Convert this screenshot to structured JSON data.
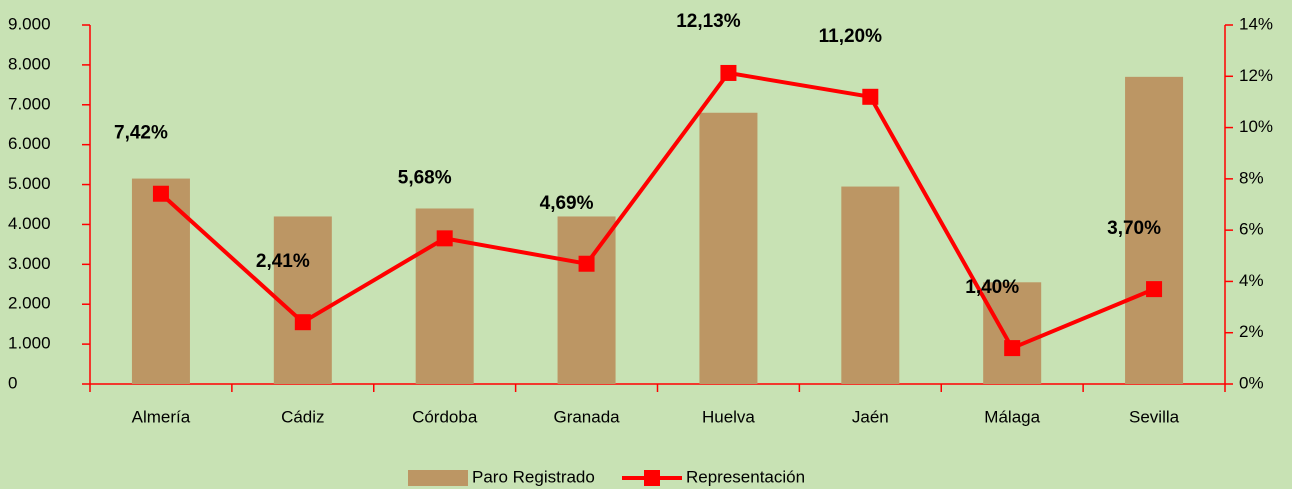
{
  "chart_data": {
    "type": "bar_line",
    "categories": [
      "Almería",
      "Cádiz",
      "Córdoba",
      "Granada",
      "Huelva",
      "Jaén",
      "Málaga",
      "Sevilla"
    ],
    "series": [
      {
        "name": "Paro Registrado",
        "type": "bar",
        "color": "#bc9664",
        "values": [
          5150,
          4200,
          4400,
          4200,
          6800,
          4950,
          2550,
          7700
        ]
      },
      {
        "name": "Representación",
        "type": "line",
        "axis": "y2",
        "color": "#ff0000",
        "values": [
          7.42,
          2.41,
          5.68,
          4.69,
          12.13,
          11.2,
          1.4,
          3.7
        ],
        "value_labels": [
          "7,42%",
          "2,41%",
          "5,68%",
          "4,69%",
          "12,13%",
          "11,20%",
          "1,40%",
          "3,70%"
        ]
      }
    ],
    "ylim": [
      0,
      9000
    ],
    "yticks": [
      0,
      {
        "value": 1000,
        "label": "1.000"
      },
      {
        "value": 2000,
        "label": "2.000"
      },
      {
        "value": 3000,
        "label": "3.000"
      },
      {
        "value": 4000,
        "label": "4.000"
      },
      {
        "value": 5000,
        "label": "5.000"
      },
      {
        "value": 6000,
        "label": "6.000"
      },
      {
        "value": 7000,
        "label": "7.000"
      },
      {
        "value": 8000,
        "label": "8.000"
      },
      {
        "value": 9000,
        "label": "9.000"
      }
    ],
    "y2lim": [
      0,
      14
    ],
    "y2ticks": [
      {
        "value": 0,
        "label": "0%"
      },
      {
        "value": 2,
        "label": "2%"
      },
      {
        "value": 4,
        "label": "4%"
      },
      {
        "value": 6,
        "label": "6%"
      },
      {
        "value": 8,
        "label": "8%"
      },
      {
        "value": 10,
        "label": "10%"
      },
      {
        "value": 12,
        "label": "12%"
      },
      {
        "value": 14,
        "label": "14%"
      }
    ],
    "legend": "bottom",
    "axis_color": "#ff0000"
  }
}
